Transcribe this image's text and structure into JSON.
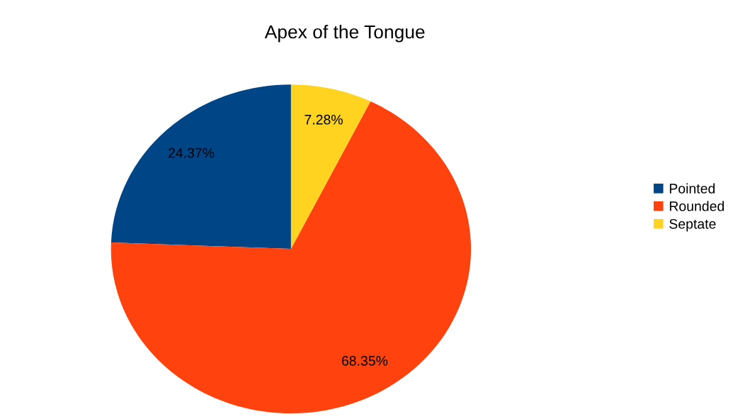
{
  "chart_data": {
    "type": "pie",
    "title": "Apex of the Tongue",
    "categories": [
      "Pointed",
      "Rounded",
      "Septate"
    ],
    "values": [
      24.37,
      68.35,
      7.28
    ],
    "value_labels": [
      "24.37%",
      "68.35%",
      "7.28%"
    ],
    "colors": [
      "#004586",
      "#ff420e",
      "#ffd320"
    ],
    "legend": "right"
  }
}
